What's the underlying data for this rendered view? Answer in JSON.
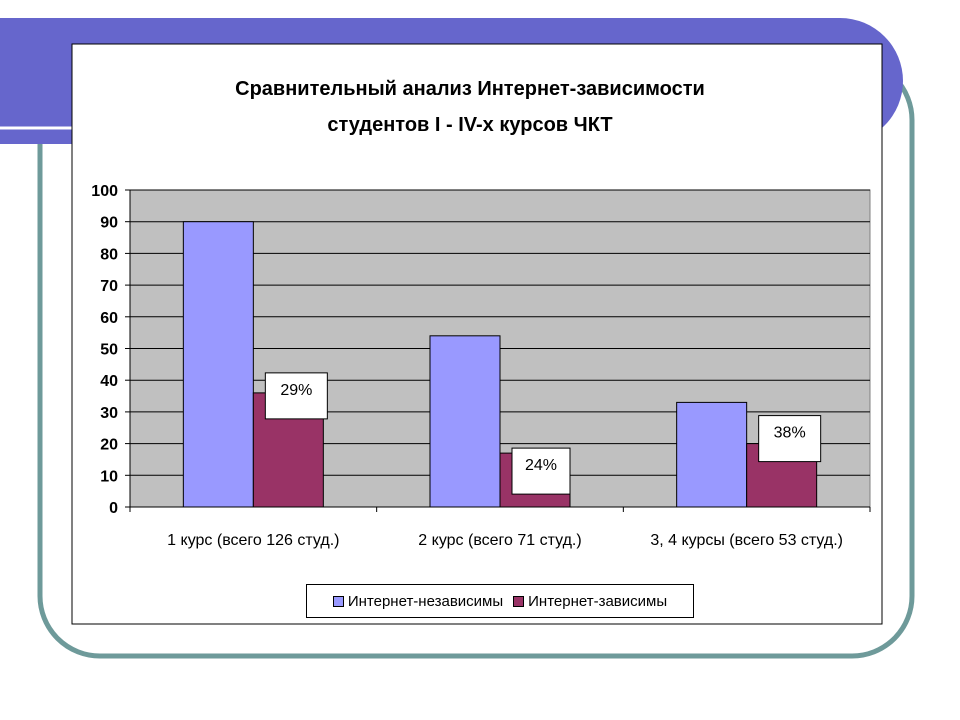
{
  "chart_data": {
    "type": "bar",
    "title_lines": [
      "Сравнительный анализ Интернет-зависимости",
      "студентов I -  IV-х курсов ЧКТ"
    ],
    "categories": [
      "1 курс (всего 126 студ.)",
      "2 курс (всего 71 студ.)",
      "3, 4 курсы (всего 53 студ.)"
    ],
    "series": [
      {
        "name": "Интернет-независимы",
        "values": [
          90,
          54,
          33
        ],
        "color": "#9999ff"
      },
      {
        "name": "Интернет-зависимы",
        "values": [
          36,
          17,
          20
        ],
        "color": "#993366"
      }
    ],
    "annotations": [
      "29%",
      "24%",
      "38%"
    ],
    "ylim": [
      0,
      100
    ],
    "yticks": [
      0,
      10,
      20,
      30,
      40,
      50,
      60,
      70,
      80,
      90,
      100
    ],
    "grid": true,
    "plot_background": "#c0c0c0",
    "legend_position": "bottom"
  },
  "theme": {
    "banner_color": "#6666cc",
    "frame_color": "#6e9a9a"
  }
}
